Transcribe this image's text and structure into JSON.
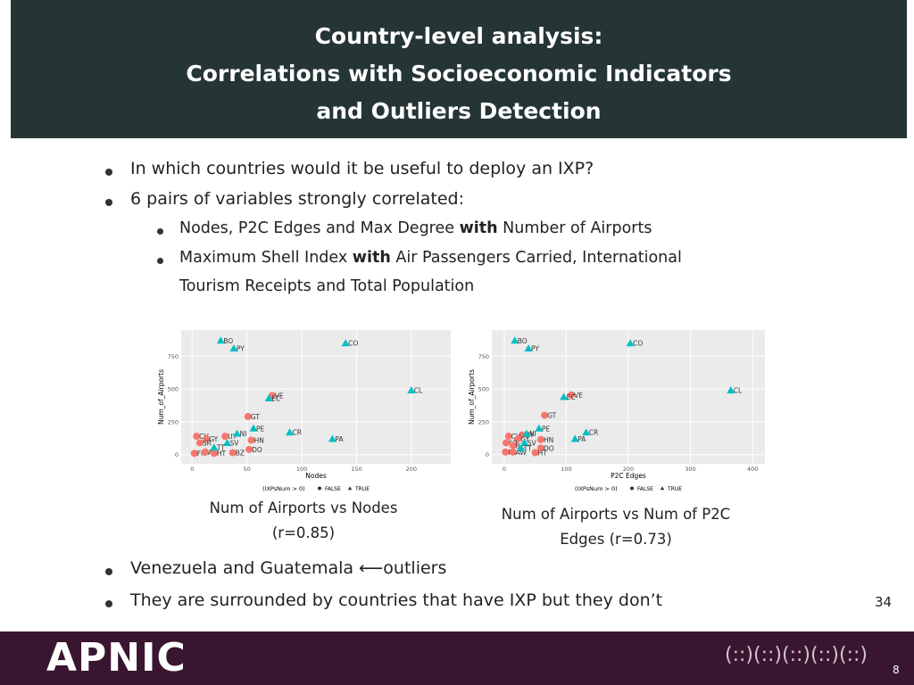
{
  "header": {
    "title": [
      "Country-level analysis:",
      "Correlations with Socioeconomic Indicators",
      "and Outliers Detection"
    ]
  },
  "bullets": [
    "In which countries would it be useful to deploy an IXP?",
    "6 pairs of variables strongly correlated:"
  ],
  "sub_bullets": [
    {
      "before": "Nodes, P2C Edges and Max Degree ",
      "bold": "with",
      "after": " Number of Airports"
    },
    {
      "before": "Maximum Shell Index ",
      "bold": "with",
      "after": " Air Passengers Carried, International",
      "cont": "Tourism Receipts and Total Population"
    }
  ],
  "chart_data": [
    {
      "type": "scatter",
      "xlabel": "Nodes",
      "ylabel": "Num_of_Airports",
      "legend_title": "(IXPsNum > 0)",
      "xlim": [
        -10,
        236
      ],
      "ylim": [
        -70,
        950
      ],
      "xticks": [
        0,
        50,
        100,
        150,
        200
      ],
      "yticks": [
        0,
        250,
        500,
        750
      ],
      "grid": true,
      "series": [
        {
          "name": "FALSE",
          "color": "#f8766d",
          "marker": "circle",
          "labels": [
            "VE",
            "GT",
            "UY",
            "CU",
            "GY",
            "HN",
            "DO",
            "SR",
            "FK",
            "AW",
            "HT",
            "BZ"
          ],
          "x": [
            73,
            51,
            30,
            4,
            13,
            54,
            52,
            7,
            2,
            12,
            20,
            37
          ],
          "values": [
            450,
            290,
            140,
            140,
            120,
            110,
            40,
            90,
            10,
            20,
            10,
            15
          ]
        },
        {
          "name": "TRUE",
          "color": "#00bfc4",
          "marker": "triangle",
          "labels": [
            "BO",
            "PY",
            "CO",
            "CL",
            "EC",
            "PE",
            "NI",
            "CR",
            "PA",
            "SV",
            "TT"
          ],
          "x": [
            26,
            38,
            140,
            200,
            70,
            56,
            41,
            89,
            128,
            32,
            20
          ],
          "values": [
            870,
            810,
            850,
            490,
            430,
            200,
            160,
            170,
            120,
            90,
            55
          ]
        }
      ]
    },
    {
      "type": "scatter",
      "xlabel": "P2C Edges",
      "ylabel": "Num_of_Airports",
      "legend_title": "(IXPsNum > 0)",
      "xlim": [
        -20,
        420
      ],
      "ylim": [
        -70,
        950
      ],
      "xticks": [
        0,
        100,
        200,
        300,
        400
      ],
      "yticks": [
        0,
        250,
        500,
        750
      ],
      "grid": true,
      "series": [
        {
          "name": "FALSE",
          "color": "#f8766d",
          "marker": "circle",
          "labels": [
            "VE",
            "GT",
            "UY",
            "CU",
            "GY",
            "HN",
            "DO",
            "SR",
            "FK",
            "AW",
            "HT",
            "BZ"
          ],
          "x": [
            108,
            65,
            29,
            7,
            22,
            59,
            59,
            3,
            2,
            14,
            50,
            14
          ],
          "values": [
            455,
            300,
            150,
            140,
            120,
            115,
            50,
            90,
            20,
            20,
            15,
            70
          ]
        },
        {
          "name": "TRUE",
          "color": "#00bfc4",
          "marker": "triangle",
          "labels": [
            "BO",
            "PY",
            "CO",
            "CL",
            "EC",
            "PE",
            "NI",
            "CR",
            "PA",
            "SV",
            "TT"
          ],
          "x": [
            17,
            39,
            203,
            365,
            96,
            56,
            36,
            132,
            114,
            33,
            27
          ],
          "values": [
            870,
            810,
            850,
            490,
            440,
            200,
            160,
            170,
            120,
            90,
            50
          ]
        }
      ]
    }
  ],
  "captions": [
    [
      "Num of Airports vs Nodes",
      "(r=0.85)"
    ],
    [
      "Num of Airports vs Num of P2C",
      "Edges (r=0.73)"
    ]
  ],
  "bottom_bullets": [
    "Venezuela and Guatemala ⟵outliers",
    "They are surrounded by countries that have IXP but they don’t"
  ],
  "slide_number": "34",
  "footer": {
    "logo": "APNIC",
    "mark": "(::)(::)(::)(::)(::)",
    "page": "8"
  }
}
